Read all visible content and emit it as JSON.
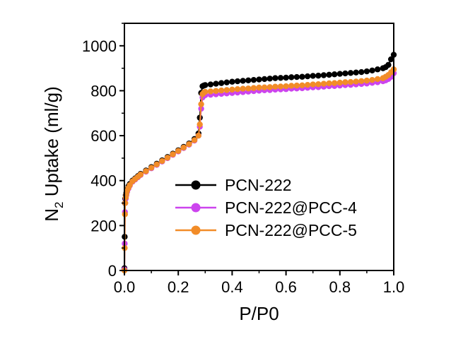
{
  "chart_data": {
    "type": "scatter",
    "title": "",
    "xlabel": "P/P0",
    "ylabel_main": "N",
    "ylabel_sub": "2",
    "ylabel_rest": " Uptake (ml/g)",
    "xlim": [
      0.0,
      1.0
    ],
    "ylim": [
      0,
      1100
    ],
    "xticks": [
      0.0,
      0.2,
      0.4,
      0.6,
      0.8,
      1.0
    ],
    "xtick_labels": [
      "0.0",
      "0.2",
      "0.4",
      "0.6",
      "0.8",
      "1.0"
    ],
    "yticks": [
      0,
      200,
      400,
      600,
      800,
      1000
    ],
    "ytick_labels": [
      "0",
      "200",
      "400",
      "600",
      "800",
      "1000"
    ],
    "legend_position": "center-right",
    "series": [
      {
        "name": "PCN-222",
        "color": "#000000",
        "draw_order": 1,
        "x": [
          0.0,
          0.001,
          0.002,
          0.003,
          0.005,
          0.007,
          0.01,
          0.015,
          0.02,
          0.03,
          0.04,
          0.05,
          0.06,
          0.08,
          0.1,
          0.12,
          0.14,
          0.16,
          0.18,
          0.2,
          0.22,
          0.24,
          0.26,
          0.275,
          0.28,
          0.285,
          0.29,
          0.295,
          0.3,
          0.32,
          0.34,
          0.36,
          0.38,
          0.4,
          0.42,
          0.44,
          0.46,
          0.48,
          0.5,
          0.52,
          0.54,
          0.56,
          0.58,
          0.6,
          0.62,
          0.64,
          0.66,
          0.68,
          0.7,
          0.72,
          0.74,
          0.76,
          0.78,
          0.8,
          0.82,
          0.84,
          0.86,
          0.88,
          0.9,
          0.92,
          0.94,
          0.96,
          0.97,
          0.98,
          0.99,
          1.0
        ],
        "y": [
          10,
          150,
          300,
          320,
          335,
          345,
          360,
          375,
          385,
          400,
          410,
          420,
          430,
          445,
          460,
          475,
          490,
          505,
          520,
          535,
          550,
          565,
          585,
          610,
          680,
          790,
          820,
          823,
          825,
          828,
          831,
          834,
          837,
          840,
          842,
          844,
          846,
          848,
          850,
          852,
          854,
          856,
          857,
          858,
          860,
          861,
          862,
          864,
          866,
          867,
          869,
          871,
          873,
          875,
          877,
          879,
          881,
          883,
          886,
          890,
          895,
          900,
          905,
          915,
          940,
          960
        ]
      },
      {
        "name": "PCN-222@PCC-4",
        "color": "#cc44ee",
        "draw_order": 2,
        "x": [
          0.0,
          0.001,
          0.002,
          0.003,
          0.005,
          0.007,
          0.01,
          0.015,
          0.02,
          0.03,
          0.04,
          0.05,
          0.06,
          0.08,
          0.1,
          0.12,
          0.14,
          0.16,
          0.18,
          0.2,
          0.22,
          0.24,
          0.26,
          0.275,
          0.28,
          0.285,
          0.29,
          0.295,
          0.3,
          0.32,
          0.34,
          0.36,
          0.38,
          0.4,
          0.42,
          0.44,
          0.46,
          0.48,
          0.5,
          0.52,
          0.54,
          0.56,
          0.58,
          0.6,
          0.62,
          0.64,
          0.66,
          0.68,
          0.7,
          0.72,
          0.74,
          0.76,
          0.78,
          0.8,
          0.82,
          0.84,
          0.86,
          0.88,
          0.9,
          0.92,
          0.94,
          0.96,
          0.97,
          0.98,
          0.99,
          1.0
        ],
        "y": [
          5,
          120,
          260,
          300,
          320,
          335,
          350,
          365,
          378,
          395,
          405,
          415,
          425,
          440,
          455,
          470,
          485,
          500,
          515,
          530,
          545,
          560,
          578,
          600,
          640,
          720,
          770,
          778,
          780,
          782,
          784,
          786,
          788,
          790,
          792,
          794,
          796,
          798,
          800,
          802,
          803,
          805,
          806,
          807,
          809,
          810,
          811,
          813,
          815,
          816,
          818,
          820,
          821,
          823,
          825,
          826,
          828,
          830,
          832,
          835,
          838,
          842,
          846,
          852,
          862,
          878
        ]
      },
      {
        "name": "PCN-222@PCC-5",
        "color": "#f28c28",
        "draw_order": 3,
        "x": [
          0.0,
          0.001,
          0.002,
          0.003,
          0.005,
          0.007,
          0.01,
          0.015,
          0.02,
          0.03,
          0.04,
          0.05,
          0.06,
          0.08,
          0.1,
          0.12,
          0.14,
          0.16,
          0.18,
          0.2,
          0.22,
          0.24,
          0.26,
          0.275,
          0.28,
          0.285,
          0.29,
          0.295,
          0.3,
          0.32,
          0.34,
          0.36,
          0.38,
          0.4,
          0.42,
          0.44,
          0.46,
          0.48,
          0.5,
          0.52,
          0.54,
          0.56,
          0.58,
          0.6,
          0.62,
          0.64,
          0.66,
          0.68,
          0.7,
          0.72,
          0.74,
          0.76,
          0.78,
          0.8,
          0.82,
          0.84,
          0.86,
          0.88,
          0.9,
          0.92,
          0.94,
          0.96,
          0.97,
          0.98,
          0.99,
          1.0
        ],
        "y": [
          0,
          100,
          250,
          300,
          325,
          340,
          355,
          368,
          380,
          397,
          407,
          417,
          427,
          442,
          457,
          472,
          487,
          502,
          517,
          532,
          547,
          562,
          580,
          600,
          650,
          740,
          785,
          792,
          795,
          797,
          799,
          801,
          803,
          805,
          807,
          809,
          810,
          812,
          814,
          815,
          816,
          818,
          819,
          820,
          822,
          823,
          824,
          826,
          828,
          829,
          831,
          833,
          834,
          836,
          838,
          839,
          841,
          843,
          845,
          848,
          852,
          856,
          862,
          870,
          882,
          895
        ]
      }
    ]
  }
}
